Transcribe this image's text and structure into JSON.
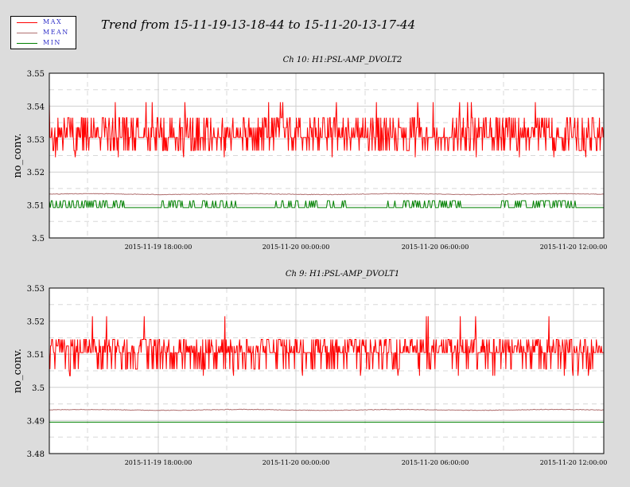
{
  "title": "Trend from 15-11-19-13-18-44 to 15-11-20-13-17-44",
  "legend": [
    {
      "label": "MAX",
      "color": "#ff0000"
    },
    {
      "label": "MEAN",
      "color": "#b07070"
    },
    {
      "label": "MIN",
      "color": "#008000"
    }
  ],
  "chart_data": [
    {
      "type": "line",
      "title": "Ch 10: H1:PSL-AMP_DVOLT2",
      "ylabel": "no_conv.",
      "xlabel": "",
      "ylim": [
        3.5,
        3.55
      ],
      "yticks": [
        "3.5",
        "3.51",
        "3.52",
        "3.53",
        "3.54",
        "3.55"
      ],
      "xticks": [
        "2015-11-19 18:00:00",
        "2015-11-20 00:00:00",
        "2015-11-20 06:00:00",
        "2015-11-20 12:00:00"
      ],
      "grid": true,
      "series": [
        {
          "name": "MAX",
          "color": "#ff0000",
          "base": 3.5305,
          "low": 3.5265,
          "high": 3.5365,
          "spike": 3.5412,
          "dip": 3.5245
        },
        {
          "name": "MEAN",
          "color": "#b07070",
          "value": 3.5133
        },
        {
          "name": "MIN",
          "color": "#008000",
          "value": 3.5092,
          "high": 3.5113
        }
      ]
    },
    {
      "type": "line",
      "title": "Ch 9: H1:PSL-AMP_DVOLT1",
      "ylabel": "no_conv.",
      "xlabel": "",
      "ylim": [
        3.48,
        3.53
      ],
      "yticks": [
        "3.48",
        "3.49",
        "3.5",
        "3.51",
        "3.52",
        "3.53"
      ],
      "xticks": [
        "2015-11-19 18:00:00",
        "2015-11-20 00:00:00",
        "2015-11-20 06:00:00",
        "2015-11-20 12:00:00"
      ],
      "grid": true,
      "series": [
        {
          "name": "MAX",
          "color": "#ff0000",
          "base": 3.5105,
          "low": 3.5055,
          "high": 3.5145,
          "spike": 3.5215,
          "dip": 3.5035
        },
        {
          "name": "MEAN",
          "color": "#b07070",
          "value": 3.4932
        },
        {
          "name": "MIN",
          "color": "#008000",
          "value": 3.4895
        }
      ]
    }
  ]
}
